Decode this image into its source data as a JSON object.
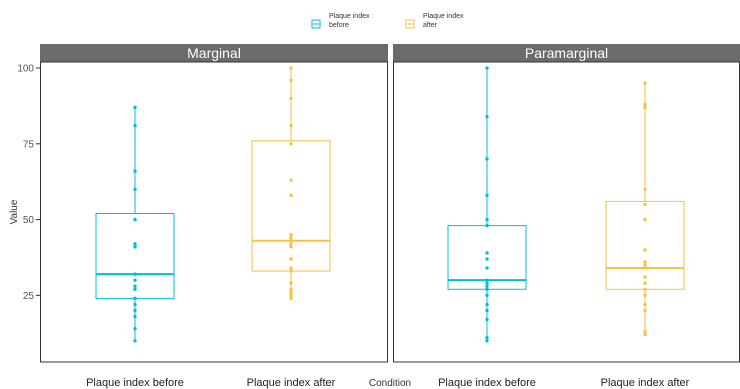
{
  "chart_data": {
    "type": "box",
    "ylabel": "Value",
    "xlabel": "Condition",
    "ylim": [
      3,
      102
    ],
    "yticks": [
      25,
      50,
      75,
      100
    ],
    "grid": false,
    "legend": {
      "position": "top-center",
      "entries": [
        {
          "line1": "Plaque index",
          "line2": "before",
          "color": "#00BFD4"
        },
        {
          "line1": "Plaque index",
          "line2": "after",
          "color": "#F5C242"
        }
      ]
    },
    "categories": [
      "Plaque index before",
      "Plaque index after"
    ],
    "colors": [
      "#00BFD4",
      "#F5C242"
    ],
    "panels": [
      {
        "title": "Marginal",
        "boxes": [
          {
            "category": "Plaque index before",
            "min": 10,
            "q1": 24,
            "median": 32,
            "q3": 52,
            "max": 87,
            "points": [
              87,
              81,
              66,
              60,
              50,
              42,
              41,
              32,
              30,
              28,
              27,
              24,
              22,
              20,
              18,
              14,
              10
            ]
          },
          {
            "category": "Plaque index after",
            "min": 24,
            "q1": 33,
            "median": 43,
            "q3": 76,
            "max": 100,
            "points": [
              100,
              96,
              90,
              81,
              75,
              63,
              58,
              45,
              44,
              43,
              42,
              41,
              37,
              34,
              33,
              29,
              27,
              26,
              25,
              24
            ]
          }
        ]
      },
      {
        "title": "Paramarginal",
        "boxes": [
          {
            "category": "Plaque index before",
            "min": 10,
            "q1": 27,
            "median": 30,
            "q3": 48,
            "max": 100,
            "points": [
              100,
              84,
              70,
              58,
              50,
              48,
              39,
              37,
              34,
              30,
              29,
              28,
              27,
              25,
              22,
              20,
              17,
              11,
              10
            ]
          },
          {
            "category": "Plaque index after",
            "min": 12,
            "q1": 27,
            "median": 34,
            "q3": 56,
            "max": 95,
            "points": [
              95,
              88,
              87,
              60,
              55,
              50,
              40,
              36,
              35,
              34,
              31,
              29,
              27,
              25,
              22,
              20,
              13,
              12
            ]
          }
        ]
      }
    ]
  }
}
